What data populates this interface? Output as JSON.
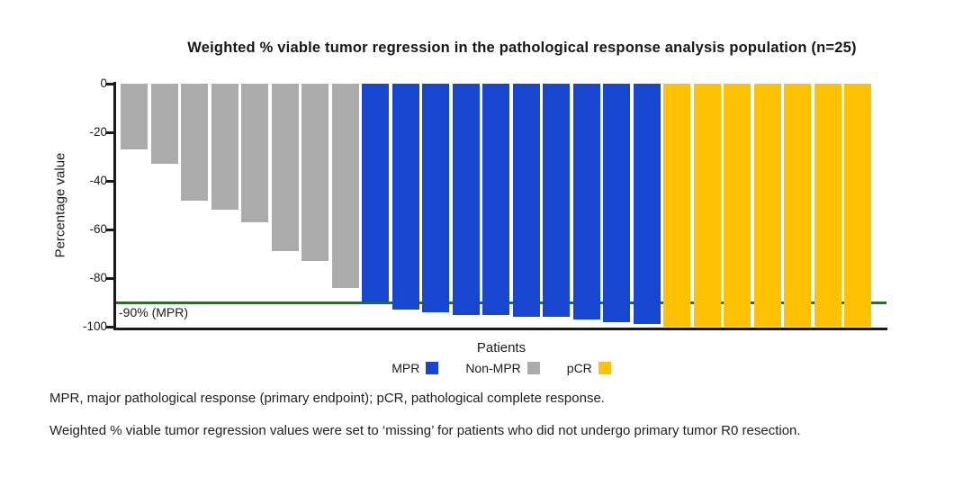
{
  "chart_data": {
    "type": "bar",
    "title": "Weighted % viable tumor regression in the pathological response analysis population (n=25)",
    "xlabel": "Patients",
    "ylabel": "Percentage value",
    "ylim": [
      -100,
      0
    ],
    "yticks": [
      0,
      -20,
      -40,
      -60,
      -80,
      -100
    ],
    "yticklabels": [
      "0",
      "-20",
      "-40",
      "-60",
      "-80",
      "-100"
    ],
    "grid": false,
    "n_patients": 25,
    "reference_line": {
      "value": -90,
      "label": "-90% (MPR)",
      "color": "#0F820F"
    },
    "series": [
      {
        "name": "Non-MPR",
        "color": "#ABABAB",
        "values": [
          -27,
          -33,
          -48,
          -52,
          -57,
          -69,
          -73,
          -84
        ]
      },
      {
        "name": "MPR",
        "color": "#1747D0",
        "values": [
          -90,
          -93,
          -94,
          -95,
          -95,
          -96,
          -96,
          -97,
          -98,
          -99
        ]
      },
      {
        "name": "pCR",
        "color": "#FFC103",
        "values": [
          -100,
          -100,
          -100,
          -100,
          -100,
          -100,
          -100
        ]
      }
    ],
    "legend": {
      "position": "bottom-center",
      "items": [
        {
          "label": "MPR",
          "color": "#1747D0"
        },
        {
          "label": "Non-MPR",
          "color": "#ABABAB"
        },
        {
          "label": "pCR",
          "color": "#FFC103"
        }
      ]
    }
  },
  "footnotes": {
    "line1": "MPR, major pathological response (primary endpoint); pCR, pathological complete response.",
    "line2": "Weighted % viable tumor regression values were set to ‘missing’ for patients who did not undergo primary tumor R0 resection."
  },
  "colors": {
    "mpr_blue": "#1747D0",
    "non_mpr_gray": "#ABABAB",
    "pcr_yellow": "#FFC103",
    "reference_green": "#0F820F",
    "axis_black": "#1A1A1A",
    "background": "#FFFFFF"
  }
}
